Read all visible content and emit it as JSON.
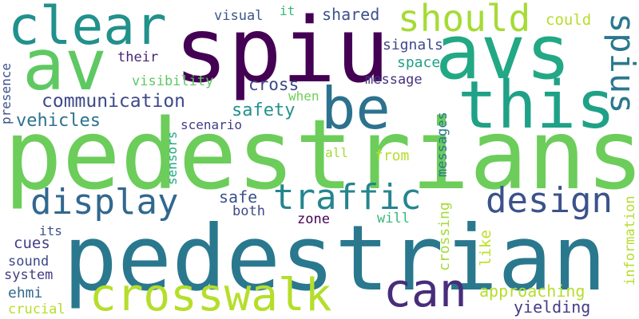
{
  "words": [
    {
      "text": "spiu",
      "color": "#440154"
    },
    {
      "text": "pedestrians",
      "color": "#6ccd5a"
    },
    {
      "text": "pedestrian",
      "color": "#2a788e"
    },
    {
      "text": "avs",
      "color": "#22a884"
    },
    {
      "text": "av",
      "color": "#5ec962"
    },
    {
      "text": "this",
      "color": "#1fa187"
    },
    {
      "text": "be",
      "color": "#2c728e"
    },
    {
      "text": "clear",
      "color": "#21918c"
    },
    {
      "text": "should",
      "color": "#a5db36"
    },
    {
      "text": "crosswalk",
      "color": "#b5de2b"
    },
    {
      "text": "can",
      "color": "#472d7b"
    },
    {
      "text": "spius",
      "color": "#2a788e"
    },
    {
      "text": "display",
      "color": "#31688e"
    },
    {
      "text": "traffic",
      "color": "#25858e"
    },
    {
      "text": "design",
      "color": "#3b528b"
    },
    {
      "text": "communication",
      "color": "#3e4989"
    },
    {
      "text": "vehicles",
      "color": "#2c728e"
    },
    {
      "text": "safety",
      "color": "#21918c"
    },
    {
      "text": "cross",
      "color": "#3e4989"
    },
    {
      "text": "visibility",
      "color": "#5ec962"
    },
    {
      "text": "their",
      "color": "#482576"
    },
    {
      "text": "visual",
      "color": "#39568c"
    },
    {
      "text": "it",
      "color": "#35b779"
    },
    {
      "text": "shared",
      "color": "#3b528b"
    },
    {
      "text": "could",
      "color": "#b5de2b"
    },
    {
      "text": "signals",
      "color": "#3e4989"
    },
    {
      "text": "space",
      "color": "#1fa187"
    },
    {
      "text": "message",
      "color": "#46327e"
    },
    {
      "text": "when",
      "color": "#6ece58"
    },
    {
      "text": "scenario",
      "color": "#433e85"
    },
    {
      "text": "sensors",
      "color": "#22a884"
    },
    {
      "text": "all",
      "color": "#a5db36"
    },
    {
      "text": "from",
      "color": "#b5de2b"
    },
    {
      "text": "messages",
      "color": "#2a788e"
    },
    {
      "text": "crossing",
      "color": "#a5db36"
    },
    {
      "text": "safe",
      "color": "#3b528b"
    },
    {
      "text": "both",
      "color": "#3e4989"
    },
    {
      "text": "zone",
      "color": "#440154"
    },
    {
      "text": "will",
      "color": "#35b779"
    },
    {
      "text": "its",
      "color": "#3b528b"
    },
    {
      "text": "cues",
      "color": "#433e85"
    },
    {
      "text": "sound",
      "color": "#3e4989"
    },
    {
      "text": "system",
      "color": "#433e85"
    },
    {
      "text": "ehmi",
      "color": "#31688e"
    },
    {
      "text": "crucial",
      "color": "#b5de2b"
    },
    {
      "text": "like",
      "color": "#bddf26"
    },
    {
      "text": "approaching",
      "color": "#b5de2b"
    },
    {
      "text": "yielding",
      "color": "#433e85"
    },
    {
      "text": "information",
      "color": "#b5de2b"
    },
    {
      "text": "presence",
      "color": "#3b528b"
    }
  ]
}
